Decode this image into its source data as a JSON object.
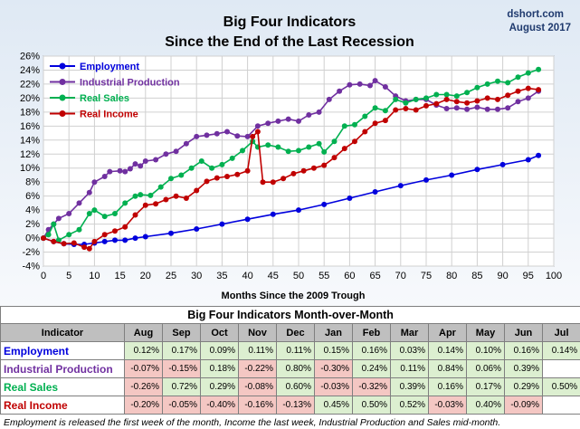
{
  "chart_data": {
    "type": "line",
    "title": "Big Four Indicators",
    "subtitle": "Since the End of the Last Recession",
    "source_line1": "dshort.com",
    "source_line2": "August 2017",
    "xlabel": "Months Since the 2009 Trough",
    "ylabel": "",
    "xlim": [
      0,
      100
    ],
    "ylim": [
      -4,
      26
    ],
    "x_ticks": [
      0,
      5,
      10,
      15,
      20,
      25,
      30,
      35,
      40,
      45,
      50,
      55,
      60,
      65,
      70,
      75,
      80,
      85,
      90,
      95,
      100
    ],
    "y_ticks": [
      "-4%",
      "-2%",
      "0%",
      "2%",
      "4%",
      "6%",
      "8%",
      "10%",
      "12%",
      "14%",
      "16%",
      "18%",
      "20%",
      "22%",
      "24%",
      "26%"
    ],
    "grid": true,
    "legend_position": "top-left",
    "series": [
      {
        "name": "Employment",
        "color": "#0000dd",
        "points": [
          [
            0,
            0
          ],
          [
            2,
            -0.5
          ],
          [
            4,
            -0.8
          ],
          [
            6,
            -0.9
          ],
          [
            8,
            -0.9
          ],
          [
            10,
            -0.7
          ],
          [
            12,
            -0.5
          ],
          [
            14,
            -0.3
          ],
          [
            16,
            -0.3
          ],
          [
            18,
            0
          ],
          [
            20,
            0.2
          ],
          [
            25,
            0.7
          ],
          [
            30,
            1.3
          ],
          [
            35,
            2.0
          ],
          [
            40,
            2.7
          ],
          [
            45,
            3.4
          ],
          [
            50,
            4.0
          ],
          [
            55,
            4.8
          ],
          [
            60,
            5.7
          ],
          [
            65,
            6.6
          ],
          [
            70,
            7.5
          ],
          [
            75,
            8.3
          ],
          [
            80,
            9.0
          ],
          [
            85,
            9.8
          ],
          [
            90,
            10.5
          ],
          [
            95,
            11.2
          ],
          [
            97,
            11.8
          ]
        ]
      },
      {
        "name": "Industrial Production",
        "color": "#7030a0",
        "points": [
          [
            0,
            0
          ],
          [
            1,
            1.2
          ],
          [
            2,
            2.0
          ],
          [
            3,
            2.8
          ],
          [
            5,
            3.5
          ],
          [
            7,
            5.0
          ],
          [
            9,
            6.5
          ],
          [
            10,
            8.0
          ],
          [
            12,
            8.8
          ],
          [
            13,
            9.5
          ],
          [
            15,
            9.6
          ],
          [
            16,
            9.5
          ],
          [
            17,
            9.9
          ],
          [
            18,
            10.6
          ],
          [
            19,
            10.3
          ],
          [
            20,
            11.0
          ],
          [
            22,
            11.2
          ],
          [
            24,
            12.0
          ],
          [
            26,
            12.4
          ],
          [
            28,
            13.5
          ],
          [
            30,
            14.5
          ],
          [
            32,
            14.7
          ],
          [
            34,
            14.9
          ],
          [
            36,
            15.2
          ],
          [
            38,
            14.6
          ],
          [
            40,
            14.5
          ],
          [
            42,
            16.0
          ],
          [
            44,
            16.4
          ],
          [
            46,
            16.7
          ],
          [
            48,
            17.0
          ],
          [
            50,
            16.7
          ],
          [
            52,
            17.6
          ],
          [
            54,
            18.0
          ],
          [
            56,
            19.8
          ],
          [
            58,
            21.0
          ],
          [
            60,
            21.9
          ],
          [
            62,
            22.0
          ],
          [
            64,
            21.8
          ],
          [
            65,
            22.5
          ],
          [
            67,
            21.6
          ],
          [
            69,
            20.3
          ],
          [
            71,
            19.6
          ],
          [
            73,
            19.8
          ],
          [
            75,
            19.8
          ],
          [
            77,
            19.0
          ],
          [
            79,
            18.5
          ],
          [
            81,
            18.6
          ],
          [
            83,
            18.4
          ],
          [
            85,
            18.7
          ],
          [
            87,
            18.4
          ],
          [
            89,
            18.4
          ],
          [
            91,
            18.6
          ],
          [
            93,
            19.5
          ],
          [
            95,
            20.0
          ],
          [
            97,
            21.0
          ]
        ]
      },
      {
        "name": "Real Sales",
        "color": "#00b050",
        "points": [
          [
            0,
            0
          ],
          [
            1,
            0.5
          ],
          [
            2,
            2.0
          ],
          [
            3,
            -0.3
          ],
          [
            5,
            0.5
          ],
          [
            7,
            1.2
          ],
          [
            9,
            3.5
          ],
          [
            10,
            4.0
          ],
          [
            12,
            3.1
          ],
          [
            14,
            3.5
          ],
          [
            16,
            5.0
          ],
          [
            18,
            6.0
          ],
          [
            19,
            6.2
          ],
          [
            21,
            6.1
          ],
          [
            23,
            7.3
          ],
          [
            25,
            8.5
          ],
          [
            27,
            9.0
          ],
          [
            29,
            10.0
          ],
          [
            31,
            11.0
          ],
          [
            33,
            10.0
          ],
          [
            35,
            10.5
          ],
          [
            37,
            11.4
          ],
          [
            39,
            12.5
          ],
          [
            41,
            13.8
          ],
          [
            42,
            13.0
          ],
          [
            44,
            13.3
          ],
          [
            46,
            13.0
          ],
          [
            48,
            12.4
          ],
          [
            50,
            12.5
          ],
          [
            52,
            13.0
          ],
          [
            54,
            13.5
          ],
          [
            55,
            12.3
          ],
          [
            57,
            13.8
          ],
          [
            59,
            16.0
          ],
          [
            61,
            16.2
          ],
          [
            63,
            17.4
          ],
          [
            65,
            18.6
          ],
          [
            67,
            18.2
          ],
          [
            69,
            19.8
          ],
          [
            71,
            19.3
          ],
          [
            73,
            19.8
          ],
          [
            75,
            20.0
          ],
          [
            77,
            20.5
          ],
          [
            79,
            20.5
          ],
          [
            81,
            20.3
          ],
          [
            83,
            20.8
          ],
          [
            85,
            21.5
          ],
          [
            87,
            22.0
          ],
          [
            89,
            22.4
          ],
          [
            91,
            22.2
          ],
          [
            93,
            23.0
          ],
          [
            95,
            23.6
          ],
          [
            97,
            24.1
          ]
        ]
      },
      {
        "name": "Real Income",
        "color": "#c00000",
        "points": [
          [
            0,
            0
          ],
          [
            2,
            -0.5
          ],
          [
            4,
            -0.8
          ],
          [
            6,
            -0.7
          ],
          [
            8,
            -1.3
          ],
          [
            9,
            -1.5
          ],
          [
            10,
            -0.5
          ],
          [
            12,
            0.5
          ],
          [
            14,
            1.0
          ],
          [
            16,
            1.6
          ],
          [
            18,
            3.3
          ],
          [
            20,
            4.7
          ],
          [
            22,
            4.9
          ],
          [
            24,
            5.5
          ],
          [
            26,
            6.0
          ],
          [
            28,
            5.7
          ],
          [
            30,
            6.8
          ],
          [
            32,
            8.1
          ],
          [
            34,
            8.6
          ],
          [
            36,
            8.8
          ],
          [
            38,
            9.1
          ],
          [
            40,
            9.6
          ],
          [
            41,
            14.5
          ],
          [
            42,
            15.2
          ],
          [
            43,
            8.0
          ],
          [
            45,
            8.0
          ],
          [
            47,
            8.5
          ],
          [
            49,
            9.2
          ],
          [
            51,
            9.6
          ],
          [
            53,
            10.0
          ],
          [
            55,
            10.4
          ],
          [
            57,
            11.5
          ],
          [
            59,
            12.8
          ],
          [
            61,
            13.8
          ],
          [
            63,
            15.2
          ],
          [
            65,
            16.4
          ],
          [
            67,
            16.8
          ],
          [
            69,
            18.3
          ],
          [
            71,
            18.5
          ],
          [
            73,
            18.3
          ],
          [
            75,
            18.9
          ],
          [
            77,
            19.2
          ],
          [
            79,
            19.8
          ],
          [
            81,
            19.5
          ],
          [
            83,
            19.3
          ],
          [
            85,
            19.6
          ],
          [
            87,
            20.0
          ],
          [
            89,
            19.8
          ],
          [
            91,
            20.4
          ],
          [
            93,
            21.0
          ],
          [
            95,
            21.4
          ],
          [
            97,
            21.2
          ]
        ]
      }
    ]
  },
  "table": {
    "title": "Big Four Indicators Month-over-Month",
    "header_label": "Indicator",
    "months": [
      "Aug",
      "Sep",
      "Oct",
      "Nov",
      "Dec",
      "Jan",
      "Feb",
      "Mar",
      "Apr",
      "May",
      "Jun",
      "Jul"
    ],
    "rows": [
      {
        "name": "Employment",
        "color": "#0000dd",
        "values": [
          "0.12%",
          "0.17%",
          "0.09%",
          "0.11%",
          "0.11%",
          "0.15%",
          "0.16%",
          "0.03%",
          "0.14%",
          "0.10%",
          "0.16%",
          "0.14%"
        ]
      },
      {
        "name": "Industrial Production",
        "color": "#7030a0",
        "values": [
          "-0.07%",
          "-0.15%",
          "0.18%",
          "-0.22%",
          "0.80%",
          "-0.30%",
          "0.24%",
          "0.11%",
          "0.84%",
          "0.06%",
          "0.39%",
          ""
        ]
      },
      {
        "name": "Real Sales",
        "color": "#00b050",
        "values": [
          "-0.26%",
          "0.72%",
          "0.29%",
          "-0.08%",
          "0.60%",
          "-0.03%",
          "-0.32%",
          "0.39%",
          "0.16%",
          "0.17%",
          "0.29%",
          "0.50%"
        ]
      },
      {
        "name": "Real Income",
        "color": "#c00000",
        "values": [
          "-0.20%",
          "-0.05%",
          "-0.40%",
          "-0.16%",
          "-0.13%",
          "0.45%",
          "0.50%",
          "0.52%",
          "-0.03%",
          "0.40%",
          "-0.09%",
          ""
        ]
      }
    ]
  },
  "footnote": "Employment is released the first week of the month, Income the last week, Industrial Production and Sales mid-month."
}
